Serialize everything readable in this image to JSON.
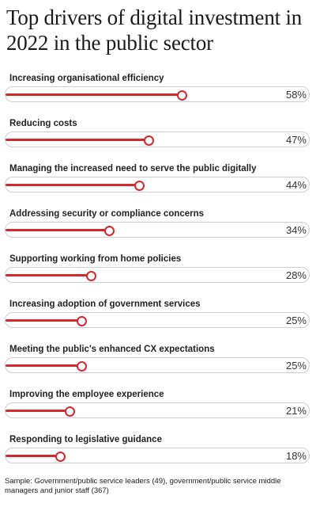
{
  "chart_data": {
    "type": "bar",
    "orientation": "horizontal",
    "title": "Top drivers of digital investment in 2022 in the public sector",
    "categories": [
      "Increasing organisational efficiency",
      "Reducing costs",
      "Managing the increased need to serve the public digitally",
      "Addressing security or compliance concerns",
      "Supporting working from home policies",
      "Increasing adoption of government services",
      "Meeting the public's enhanced CX expectations",
      "Improving the employee experience",
      "Responding to legislative guidance"
    ],
    "values": [
      58,
      47,
      44,
      34,
      28,
      25,
      25,
      21,
      18
    ],
    "value_labels": [
      "58%",
      "47%",
      "44%",
      "34%",
      "28%",
      "25%",
      "25%",
      "21%",
      "18%"
    ],
    "unit": "%",
    "xlim": [
      0,
      100
    ],
    "bar_color": "#d6282d",
    "grid": false,
    "legend": "none"
  },
  "footnote": "Sample: Government/public service leaders (49), government/public service middle managers and junior staff (367)"
}
